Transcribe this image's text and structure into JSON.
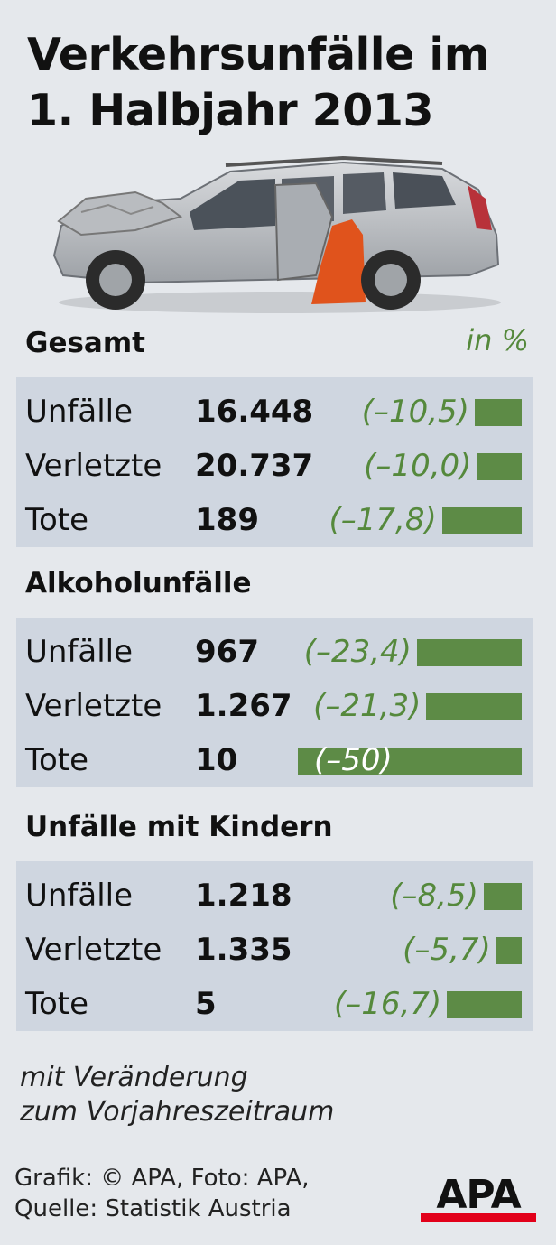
{
  "title_line1": "Verkehrsunfälle im",
  "title_line2": "1. Halbjahr 2013",
  "unit_label": "in %",
  "footnote_line1": "mit Veränderung",
  "footnote_line2": "zum Vorjahreszeitraum",
  "credit_line1": "Grafik: © APA, Foto: APA,",
  "credit_line2": "Quelle: Statistik Austria",
  "logo_text": "APA",
  "colors": {
    "background": "#e5e8ec",
    "panel": "#cfd6e0",
    "bar": "#5d8b46",
    "change_text": "#55893c",
    "logo_red": "#e2001a"
  },
  "chart_data": {
    "type": "bar",
    "orientation": "horizontal",
    "value_unit": "%",
    "groups": [
      {
        "name": "Gesamt",
        "rows": [
          {
            "label": "Unfälle",
            "value": "16.448",
            "change": -10.5,
            "change_text": "(–10,5)"
          },
          {
            "label": "Verletzte",
            "value": "20.737",
            "change": -10.0,
            "change_text": "(–10,0)"
          },
          {
            "label": "Tote",
            "value": "189",
            "change": -17.8,
            "change_text": "(–17,8)"
          }
        ]
      },
      {
        "name": "Alkoholunfälle",
        "rows": [
          {
            "label": "Unfälle",
            "value": "967",
            "change": -23.4,
            "change_text": "(–23,4)"
          },
          {
            "label": "Verletzte",
            "value": "1.267",
            "change": -21.3,
            "change_text": "(–21,3)"
          },
          {
            "label": "Tote",
            "value": "10",
            "change": -50,
            "change_text": "(–50)"
          }
        ]
      },
      {
        "name": "Unfälle mit Kindern",
        "rows": [
          {
            "label": "Unfälle",
            "value": "1.218",
            "change": -8.5,
            "change_text": "(–8,5)"
          },
          {
            "label": "Verletzte",
            "value": "1.335",
            "change": -5.7,
            "change_text": "(–5,7)"
          },
          {
            "label": "Tote",
            "value": "5",
            "change": -16.7,
            "change_text": "(–16,7)"
          }
        ]
      }
    ]
  }
}
